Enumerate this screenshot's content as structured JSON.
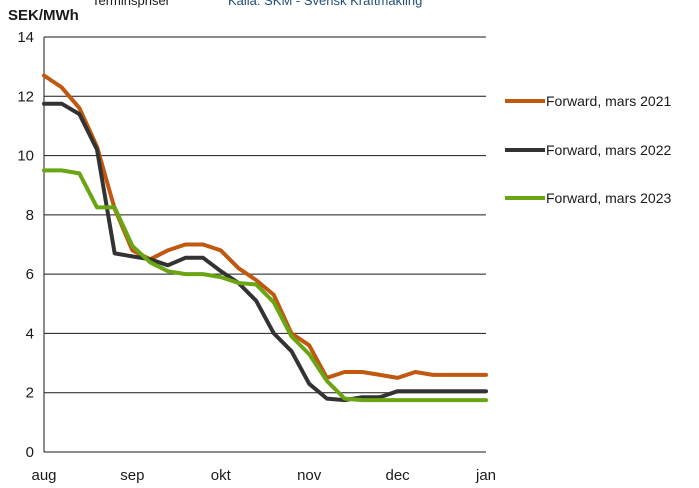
{
  "header": {
    "cut_text_left": "Terminspriser",
    "cut_text_right": "Källa: SKM - Svensk Kraftmäkling",
    "unit_label": "SEK/MWh"
  },
  "colors": {
    "series_1": "#c0580f",
    "series_2": "#333333",
    "series_3": "#6aa514",
    "source": "#1f4e79"
  },
  "chart_data": {
    "type": "line",
    "ylabel": "SEK/MWh",
    "ylim": [
      0,
      14
    ],
    "yticks": [
      0,
      2,
      4,
      6,
      8,
      10,
      12,
      14
    ],
    "xlim": [
      0,
      5
    ],
    "xticks": [
      {
        "label": "aug",
        "x": 0
      },
      {
        "label": "sep",
        "x": 1
      },
      {
        "label": "okt",
        "x": 2
      },
      {
        "label": "nov",
        "x": 3
      },
      {
        "label": "dec",
        "x": 4
      },
      {
        "label": "jan",
        "x": 5
      }
    ],
    "grid": "horizontal",
    "legend": "right",
    "series": [
      {
        "name": "Forward, mars 2021",
        "color": "#c0580f",
        "x": [
          0,
          0.2,
          0.4,
          0.6,
          0.8,
          1.0,
          1.2,
          1.4,
          1.6,
          1.8,
          2.0,
          2.2,
          2.4,
          2.6,
          2.8,
          3.0,
          3.2,
          3.4,
          3.6,
          3.8,
          4.0,
          4.2,
          4.4,
          4.6,
          4.8,
          5.0
        ],
        "y": [
          12.7,
          12.3,
          11.6,
          10.3,
          8.2,
          6.8,
          6.5,
          6.8,
          7.0,
          7.0,
          6.8,
          6.2,
          5.8,
          5.3,
          4.0,
          3.6,
          2.5,
          2.7,
          2.7,
          2.6,
          2.5,
          2.7,
          2.6,
          2.6,
          2.6,
          2.6
        ]
      },
      {
        "name": "Forward, mars 2022",
        "color": "#333333",
        "x": [
          0,
          0.2,
          0.4,
          0.6,
          0.8,
          1.0,
          1.2,
          1.4,
          1.6,
          1.8,
          2.0,
          2.2,
          2.4,
          2.6,
          2.8,
          3.0,
          3.2,
          3.4,
          3.6,
          3.8,
          4.0,
          4.2,
          4.4,
          4.6,
          4.8,
          5.0
        ],
        "y": [
          11.75,
          11.75,
          11.4,
          10.2,
          6.7,
          6.6,
          6.5,
          6.3,
          6.55,
          6.55,
          6.1,
          5.7,
          5.1,
          4.0,
          3.4,
          2.3,
          1.8,
          1.75,
          1.85,
          1.85,
          2.05,
          2.05,
          2.05,
          2.05,
          2.05,
          2.05
        ]
      },
      {
        "name": "Forward, mars 2023",
        "color": "#6aa514",
        "x": [
          0,
          0.2,
          0.4,
          0.6,
          0.8,
          1.0,
          1.2,
          1.4,
          1.6,
          1.8,
          2.0,
          2.2,
          2.4,
          2.6,
          2.8,
          3.0,
          3.2,
          3.4,
          3.6,
          3.8,
          4.0,
          4.2,
          4.4,
          4.6,
          4.8,
          5.0
        ],
        "y": [
          9.5,
          9.5,
          9.4,
          8.25,
          8.25,
          6.95,
          6.4,
          6.1,
          6.0,
          6.0,
          5.9,
          5.7,
          5.65,
          5.05,
          3.9,
          3.3,
          2.4,
          1.8,
          1.75,
          1.75,
          1.75,
          1.75,
          1.75,
          1.75,
          1.75,
          1.75
        ]
      }
    ]
  }
}
